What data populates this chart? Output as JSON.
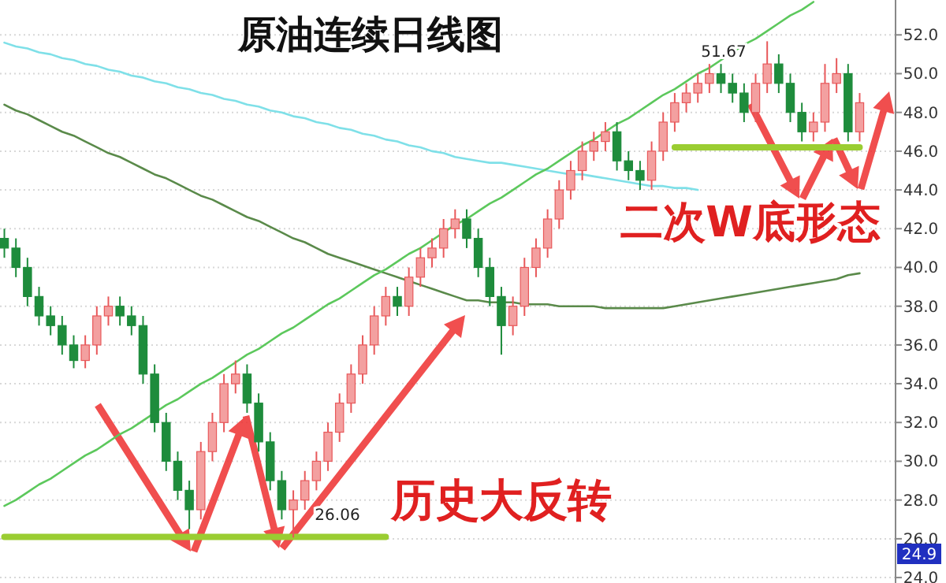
{
  "chart_data": {
    "type": "candlestick",
    "title": "原油连续日线图",
    "categories": [
      null,
      null,
      null,
      null,
      null,
      null,
      null,
      null,
      null,
      null,
      null,
      null,
      null,
      null,
      null,
      null,
      null,
      null,
      null,
      null,
      null,
      null,
      null,
      null,
      null,
      null,
      null,
      null,
      null,
      null,
      null,
      null,
      null,
      null,
      null,
      null,
      null,
      null,
      null,
      null,
      null,
      null,
      null,
      null,
      null,
      null,
      null,
      null,
      null,
      null,
      null,
      null,
      null,
      null,
      null,
      null,
      null,
      null,
      null,
      null,
      null,
      null,
      null,
      null,
      null,
      null,
      null,
      null,
      null,
      null,
      null,
      null,
      null,
      null,
      null
    ],
    "ohlc": [
      [
        41.5,
        42,
        40.5,
        41
      ],
      [
        41,
        41.5,
        39.5,
        40
      ],
      [
        40,
        40.5,
        38,
        38.5
      ],
      [
        38.5,
        39,
        37,
        37.5
      ],
      [
        37.5,
        38,
        36.5,
        37
      ],
      [
        37,
        37.5,
        35.5,
        36
      ],
      [
        36,
        36.5,
        34.8,
        35.2
      ],
      [
        35.2,
        36.5,
        34.8,
        36
      ],
      [
        36,
        38,
        35.5,
        37.5
      ],
      [
        37.5,
        38.5,
        37,
        38
      ],
      [
        38,
        38.5,
        37,
        37.5
      ],
      [
        37.5,
        38,
        36.5,
        37
      ],
      [
        37,
        37.5,
        34,
        34.5
      ],
      [
        34.5,
        35,
        31.5,
        32
      ],
      [
        32,
        32.5,
        29.5,
        30
      ],
      [
        30,
        30.5,
        28,
        28.5
      ],
      [
        28.5,
        29,
        26.5,
        27.5
      ],
      [
        27.5,
        31,
        27,
        30.5
      ],
      [
        30.5,
        32.5,
        30,
        32
      ],
      [
        32,
        34.5,
        31.5,
        34
      ],
      [
        34,
        35.2,
        33.5,
        34.5
      ],
      [
        34.5,
        35,
        32.5,
        33
      ],
      [
        33,
        33.5,
        30.5,
        31
      ],
      [
        31,
        31.5,
        28.5,
        29
      ],
      [
        29,
        29.5,
        27,
        27.5
      ],
      [
        27.5,
        28.5,
        26.06,
        28
      ],
      [
        28,
        29.5,
        27.5,
        29
      ],
      [
        29,
        30.5,
        28.5,
        30
      ],
      [
        30,
        32,
        29.5,
        31.5
      ],
      [
        31.5,
        33.5,
        31,
        33
      ],
      [
        33,
        35,
        32.5,
        34.5
      ],
      [
        34.5,
        36.5,
        34,
        36
      ],
      [
        36,
        38,
        35.5,
        37.5
      ],
      [
        37.5,
        39,
        37,
        38.5
      ],
      [
        38.5,
        39,
        37.5,
        38
      ],
      [
        38,
        40,
        37.5,
        39.5
      ],
      [
        39.5,
        41,
        39,
        40.5
      ],
      [
        40.5,
        41.5,
        40,
        41
      ],
      [
        41,
        42.5,
        40.5,
        42
      ],
      [
        42,
        43,
        41.5,
        42.5
      ],
      [
        42.5,
        43,
        41,
        41.5
      ],
      [
        41.5,
        42,
        39.5,
        40
      ],
      [
        40,
        40.5,
        38,
        38.5
      ],
      [
        38.5,
        39,
        35.5,
        37
      ],
      [
        37,
        38.5,
        36.5,
        38
      ],
      [
        38,
        40.5,
        37.5,
        40
      ],
      [
        40,
        41.5,
        39.5,
        41
      ],
      [
        41,
        43,
        40.5,
        42.5
      ],
      [
        42.5,
        44.5,
        42,
        44
      ],
      [
        44,
        45.5,
        43.5,
        45
      ],
      [
        45,
        46.5,
        44.5,
        46
      ],
      [
        46,
        47,
        45.5,
        46.5
      ],
      [
        46.5,
        47.5,
        46,
        47
      ],
      [
        47,
        47.5,
        45,
        45.5
      ],
      [
        45.5,
        46,
        44.5,
        45
      ],
      [
        45,
        45.5,
        44,
        44.5
      ],
      [
        44.5,
        46.5,
        44,
        46
      ],
      [
        46,
        48,
        45.5,
        47.5
      ],
      [
        47.5,
        49,
        47,
        48.5
      ],
      [
        48.5,
        49.5,
        48,
        49
      ],
      [
        49,
        50,
        48.5,
        49.5
      ],
      [
        49.5,
        50.5,
        49,
        50
      ],
      [
        50,
        50.5,
        49,
        49.5
      ],
      [
        49.5,
        50,
        48.5,
        49
      ],
      [
        49,
        49.5,
        47.5,
        48
      ],
      [
        48,
        50,
        47.5,
        49.5
      ],
      [
        49.5,
        51.67,
        49,
        50.5
      ],
      [
        50.5,
        51,
        49,
        49.5
      ],
      [
        49.5,
        50,
        47.5,
        48
      ],
      [
        48,
        48.5,
        46.5,
        47
      ],
      [
        47,
        48,
        46.5,
        47.5
      ],
      [
        47.5,
        50.5,
        47,
        49.5
      ],
      [
        49.5,
        50.8,
        49,
        50
      ],
      [
        50,
        50.5,
        46.5,
        47
      ],
      [
        47,
        49,
        46.5,
        48.5
      ]
    ],
    "series": [
      {
        "type": "line",
        "color": "#7fe0e8",
        "values": [
          51.6,
          51.4,
          51.3,
          51.1,
          51.0,
          50.8,
          50.7,
          50.5,
          50.4,
          50.2,
          50.1,
          49.9,
          49.8,
          49.6,
          49.5,
          49.3,
          49.2,
          49.0,
          48.9,
          48.7,
          48.6,
          48.4,
          48.3,
          48.1,
          48.0,
          47.8,
          47.7,
          47.5,
          47.4,
          47.2,
          47.1,
          46.9,
          46.8,
          46.6,
          46.5,
          46.3,
          46.2,
          46.0,
          45.9,
          45.7,
          45.6,
          45.5,
          45.4,
          45.4,
          45.3,
          45.2,
          45.1,
          45.0,
          44.9,
          44.8,
          44.8,
          44.7,
          44.6,
          44.5,
          44.4,
          44.3,
          44.2,
          44.2,
          44.1,
          44.1,
          44.0,
          null,
          null,
          null,
          null,
          null,
          null,
          null,
          null,
          null,
          null,
          null,
          null,
          null,
          null
        ]
      },
      {
        "type": "line",
        "color": "#5a8a4a",
        "values": [
          48.4,
          48.1,
          47.9,
          47.6,
          47.3,
          47.0,
          46.8,
          46.5,
          46.2,
          45.9,
          45.7,
          45.4,
          45.1,
          44.8,
          44.6,
          44.3,
          44.0,
          43.7,
          43.5,
          43.2,
          42.9,
          42.6,
          42.4,
          42.1,
          41.8,
          41.5,
          41.3,
          41.0,
          40.7,
          40.5,
          40.3,
          40.1,
          39.9,
          39.7,
          39.5,
          39.3,
          39.1,
          38.9,
          38.7,
          38.5,
          38.3,
          38.3,
          38.2,
          38.2,
          38.2,
          38.1,
          38.1,
          38.1,
          38.0,
          38.0,
          38.0,
          38.0,
          37.9,
          37.9,
          37.9,
          37.9,
          37.9,
          37.9,
          38.0,
          38.1,
          38.2,
          38.3,
          38.4,
          38.5,
          38.6,
          38.7,
          38.8,
          38.9,
          39.0,
          39.1,
          39.2,
          39.3,
          39.4,
          39.6,
          39.7
        ]
      },
      {
        "type": "line",
        "color": "#5cc85c",
        "values": [
          27.7,
          28.0,
          28.4,
          28.8,
          29.1,
          29.5,
          29.9,
          30.3,
          30.6,
          31.0,
          31.4,
          31.7,
          32.1,
          32.5,
          32.9,
          33.2,
          33.6,
          34.0,
          34.3,
          34.7,
          35.1,
          35.5,
          35.8,
          36.2,
          36.6,
          36.9,
          37.3,
          37.7,
          38.1,
          38.4,
          38.8,
          39.2,
          39.6,
          39.9,
          40.3,
          40.7,
          41.0,
          41.4,
          41.8,
          42.2,
          42.5,
          42.9,
          43.3,
          43.6,
          44.0,
          44.4,
          44.8,
          45.1,
          45.5,
          45.9,
          46.3,
          46.6,
          47.0,
          47.4,
          47.7,
          48.1,
          48.5,
          48.9,
          49.2,
          49.6,
          50.0,
          50.3,
          50.7,
          51.1,
          51.5,
          51.8,
          52.2,
          52.6,
          53.0,
          53.3,
          53.7,
          null,
          null,
          null,
          null
        ]
      },
      {
        "type": "line",
        "color": "#9acd32",
        "values": [
          26.1,
          26.1,
          26.1,
          26.1,
          26.1,
          26.1,
          26.1,
          26.1,
          26.1,
          26.1,
          26.1,
          26.1,
          26.1,
          26.1,
          26.1,
          26.1,
          26.1,
          26.1,
          26.1,
          26.1,
          26.1,
          26.1,
          26.1,
          26.1,
          26.1,
          26.1,
          26.1,
          26.1,
          26.1,
          26.1,
          26.1,
          26.1,
          26.1,
          26.1,
          null,
          null,
          null,
          null,
          null,
          null,
          null,
          null,
          null,
          null,
          null,
          null,
          null,
          null,
          null,
          null,
          null,
          null,
          null,
          null,
          null,
          null,
          null,
          null,
          null,
          null,
          null,
          null,
          null,
          null,
          null,
          null,
          null,
          null,
          null,
          null,
          null,
          null,
          null,
          null,
          null
        ]
      },
      {
        "type": "line",
        "color": "#9acd32",
        "values": [
          null,
          null,
          null,
          null,
          null,
          null,
          null,
          null,
          null,
          null,
          null,
          null,
          null,
          null,
          null,
          null,
          null,
          null,
          null,
          null,
          null,
          null,
          null,
          null,
          null,
          null,
          null,
          null,
          null,
          null,
          null,
          null,
          null,
          null,
          null,
          null,
          null,
          null,
          null,
          null,
          null,
          null,
          null,
          null,
          null,
          null,
          null,
          null,
          null,
          null,
          null,
          null,
          null,
          null,
          null,
          null,
          null,
          null,
          46.2,
          46.2,
          46.2,
          46.2,
          46.2,
          46.2,
          46.2,
          46.2,
          46.2,
          46.2,
          46.2,
          46.2,
          46.2,
          46.2,
          46.2,
          46.2,
          46.2
        ]
      }
    ],
    "ylim": [
      23.8,
      53.8
    ],
    "yticks": [
      {
        "value": 24,
        "label": "24.0"
      },
      {
        "value": 26,
        "label": "26.0"
      },
      {
        "value": 28,
        "label": "28.0"
      },
      {
        "value": 30,
        "label": "30.0"
      },
      {
        "value": 32,
        "label": "32.0"
      },
      {
        "value": 34,
        "label": "34.0"
      },
      {
        "value": 36,
        "label": "36.0"
      },
      {
        "value": 38,
        "label": "38.0"
      },
      {
        "value": 40,
        "label": "40.0"
      },
      {
        "value": 42,
        "label": "42.0"
      },
      {
        "value": 44,
        "label": "44.0"
      },
      {
        "value": 46,
        "label": "46.0"
      },
      {
        "value": 48,
        "label": "48.0"
      },
      {
        "value": 50,
        "label": "50.0"
      },
      {
        "value": 52,
        "label": "52.0"
      }
    ],
    "tick_labels": "y",
    "grid": "y",
    "annotations": [
      "51.67",
      "26.06",
      "历史大反转",
      "二次W底形态",
      "24.9"
    ]
  }
}
